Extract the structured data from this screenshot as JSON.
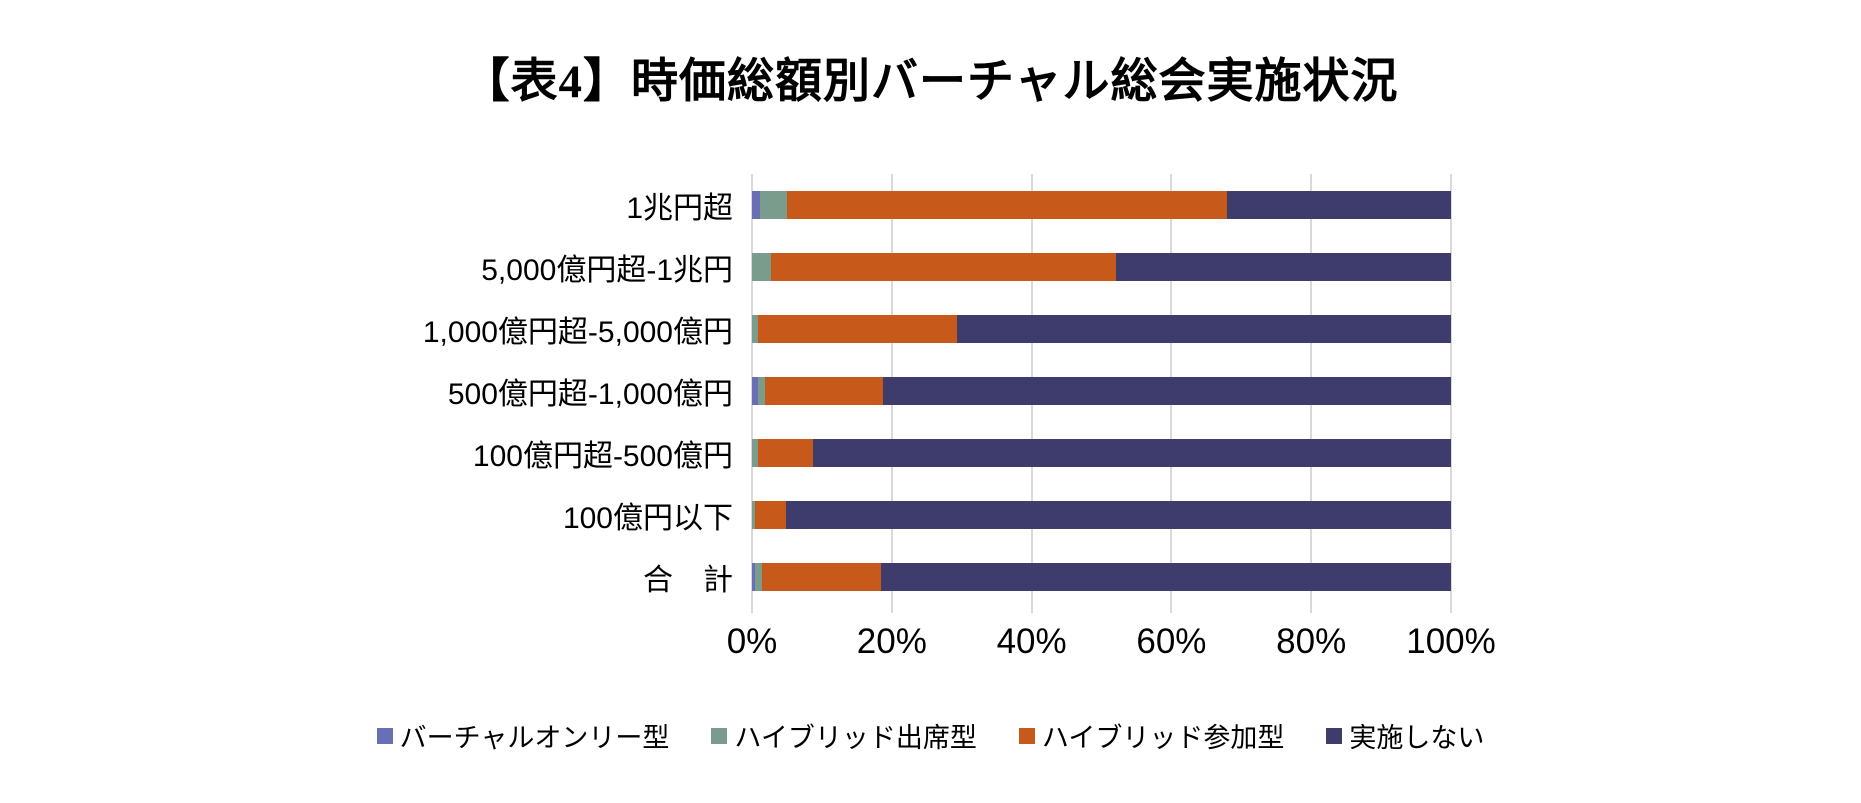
{
  "chart_data": {
    "type": "bar",
    "orientation": "horizontal",
    "stacking": "percent",
    "title": "【表4】時価総額別バーチャル総会実施状況",
    "categories": [
      "1兆円超",
      "5,000億円超-1兆円",
      "1,000億円超-5,000億円",
      "500億円超-1,000億円",
      "100億円超-500億円",
      "100億円以下",
      "合　計"
    ],
    "series": [
      {
        "name": "バーチャルオンリー型",
        "color": "#6A6FB5",
        "values": [
          1.2,
          0,
          0,
          0.8,
          0,
          0,
          0.5
        ]
      },
      {
        "name": "ハイブリッド出席型",
        "color": "#7A9C8C",
        "values": [
          3.8,
          2.7,
          0.8,
          1.0,
          0.8,
          0.5,
          1.0
        ]
      },
      {
        "name": "ハイブリッド参加型",
        "color": "#C75A1A",
        "values": [
          63.0,
          49.4,
          28.6,
          16.9,
          7.9,
          4.4,
          16.9
        ]
      },
      {
        "name": "実施しない",
        "color": "#3D3C6C",
        "values": [
          32.0,
          47.9,
          70.6,
          81.3,
          91.3,
          95.1,
          81.6
        ]
      }
    ],
    "x_ticks": [
      "0%",
      "20%",
      "40%",
      "60%",
      "80%",
      "100%"
    ],
    "xlim": [
      0,
      100
    ],
    "grid": true,
    "gridline_color": "#d9d9d9",
    "legend_position": "bottom"
  }
}
